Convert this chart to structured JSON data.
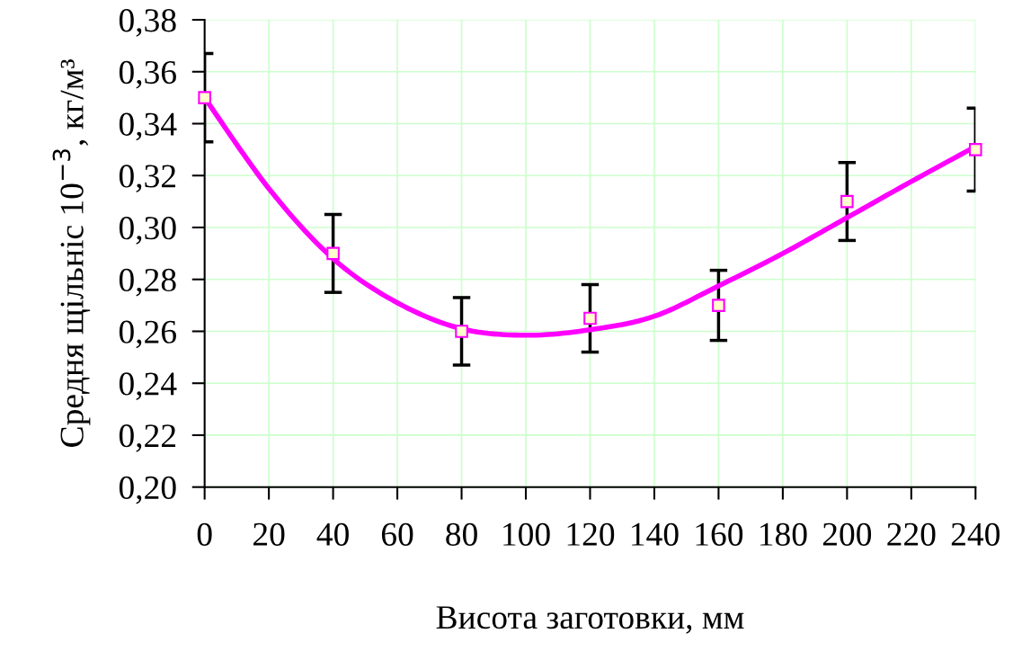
{
  "chart_data": {
    "type": "scatter",
    "xlabel": "Висота заготовки, мм",
    "ylabel": "Средня щільніс 10$^{−3}$, кг/м³",
    "xlim": [
      0,
      240
    ],
    "xticks": [
      0,
      20,
      40,
      60,
      80,
      100,
      120,
      140,
      160,
      180,
      200,
      220,
      240
    ],
    "ylim": [
      0.2,
      0.38
    ],
    "yticks": [
      {
        "value": 0.2,
        "label": "0,20"
      },
      {
        "value": 0.22,
        "label": "0,22"
      },
      {
        "value": 0.24,
        "label": "0,24"
      },
      {
        "value": 0.26,
        "label": "0,26"
      },
      {
        "value": 0.28,
        "label": "0,28"
      },
      {
        "value": 0.3,
        "label": "0,30"
      },
      {
        "value": 0.32,
        "label": "0,32"
      },
      {
        "value": 0.34,
        "label": "0,34"
      },
      {
        "value": 0.36,
        "label": "0,36"
      },
      {
        "value": 0.38,
        "label": "0,38"
      }
    ],
    "grid": true,
    "marker": "square",
    "series": [
      {
        "type": "line",
        "color": "#ff00ff",
        "x": [
          0,
          20,
          40,
          60,
          80,
          100,
          120,
          140,
          160,
          180,
          200,
          220,
          240
        ],
        "values": [
          0.35,
          0.315,
          0.288,
          0.271,
          0.261,
          0.2585,
          0.2606,
          0.2658,
          0.2775,
          0.29,
          0.3038,
          0.3177,
          0.3312
        ],
        "marker": "none"
      },
      {
        "color": "#ff00ff",
        "x": [
          0,
          40,
          80,
          120,
          160,
          200,
          240
        ],
        "values": [
          0.35,
          0.29,
          0.26,
          0.265,
          0.27,
          0.31,
          0.33
        ],
        "errors": [
          0.017,
          0.015,
          0.013,
          0.013,
          0.0135,
          0.015,
          0.016
        ]
      }
    ]
  }
}
